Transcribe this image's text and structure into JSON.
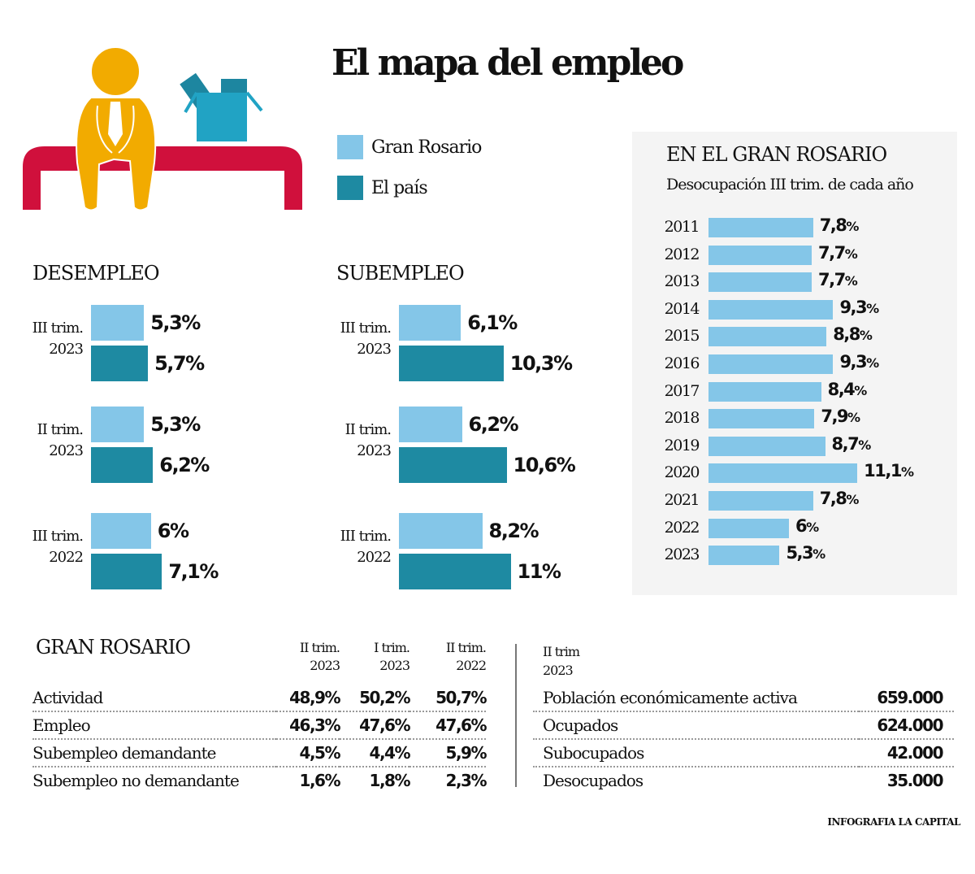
{
  "title": "El mapa del empleo",
  "illustration": "unemployed-person-on-bench-with-box",
  "colors": {
    "gran_rosario": "#84c6e8",
    "el_pais": "#1e8aa2",
    "bench": "#d0103c",
    "person": "#f2ab00",
    "box": "#21a3c4",
    "box_dark": "#1d86a0",
    "panel_bg": "#f4f4f4"
  },
  "legend": [
    {
      "label": "Gran Rosario",
      "color": "#84c6e8"
    },
    {
      "label": "El país",
      "color": "#1e8aa2"
    }
  ],
  "credit": "INFOGRAFIA LA CAPITAL",
  "chart_data": [
    {
      "type": "bar",
      "title": "DESEMPLEO",
      "categories": [
        "III trim. 2023",
        "II trim. 2023",
        "III trim. 2022"
      ],
      "category_lines": [
        [
          "III trim.",
          "2023"
        ],
        [
          "II trim.",
          "2023"
        ],
        [
          "III trim.",
          "2022"
        ]
      ],
      "series": [
        {
          "name": "Gran Rosario",
          "values": [
            5.3,
            5.3,
            6.0
          ],
          "labels": [
            "5,3%",
            "5,3%",
            "6%"
          ]
        },
        {
          "name": "El país",
          "values": [
            5.7,
            6.2,
            7.1
          ],
          "labels": [
            "5,7%",
            "6,2%",
            "7,1%"
          ]
        }
      ],
      "orientation": "horizontal"
    },
    {
      "type": "bar",
      "title": "SUBEMPLEO",
      "categories": [
        "III trim. 2023",
        "II trim. 2023",
        "III trim. 2022"
      ],
      "category_lines": [
        [
          "III trim.",
          "2023"
        ],
        [
          "II trim.",
          "2023"
        ],
        [
          "III trim.",
          "2022"
        ]
      ],
      "series": [
        {
          "name": "Gran Rosario",
          "values": [
            6.1,
            6.2,
            8.2
          ],
          "labels": [
            "6,1%",
            "6,2%",
            "8,2%"
          ]
        },
        {
          "name": "El país",
          "values": [
            10.3,
            10.6,
            11.0
          ],
          "labels": [
            "10,3%",
            "10,6%",
            "11%"
          ]
        }
      ],
      "orientation": "horizontal"
    },
    {
      "type": "bar",
      "title": "EN EL GRAN ROSARIO",
      "subtitle": "Desocupación III trim. de cada año",
      "categories": [
        "2011",
        "2012",
        "2013",
        "2014",
        "2015",
        "2016",
        "2017",
        "2018",
        "2019",
        "2020",
        "2021",
        "2022",
        "2023"
      ],
      "values": [
        7.8,
        7.7,
        7.7,
        9.3,
        8.8,
        9.3,
        8.4,
        7.9,
        8.7,
        11.1,
        7.8,
        6.0,
        5.3
      ],
      "labels": [
        "7,8",
        "7,7",
        "7,7",
        "9,3",
        "8,8",
        "9,3",
        "8,4",
        "7,9",
        "8,7",
        "11,1",
        "7,8",
        "6",
        "5,3"
      ],
      "unit": "%",
      "orientation": "horizontal"
    }
  ],
  "table_rates": {
    "title": "GRAN ROSARIO",
    "columns": [
      [
        "II trim.",
        "2023"
      ],
      [
        "I trim.",
        "2023"
      ],
      [
        "II trim.",
        "2022"
      ]
    ],
    "rows": [
      {
        "label": "Actividad",
        "values": [
          "48,9%",
          "50,2%",
          "50,7%"
        ]
      },
      {
        "label": "Empleo",
        "values": [
          "46,3%",
          "47,6%",
          "47,6%"
        ]
      },
      {
        "label": "Subempleo demandante",
        "values": [
          "4,5%",
          "4,4%",
          "5,9%"
        ]
      },
      {
        "label": "Subempleo no demandante",
        "values": [
          "1,6%",
          "1,8%",
          "2,3%"
        ]
      }
    ]
  },
  "table_counts": {
    "period": [
      "II trim",
      "2023"
    ],
    "rows": [
      {
        "label": "Población económicamente activa",
        "value": "659.000"
      },
      {
        "label": "Ocupados",
        "value": "624.000"
      },
      {
        "label": "Subocupados",
        "value": "42.000"
      },
      {
        "label": "Desocupados",
        "value": "35.000"
      }
    ]
  }
}
